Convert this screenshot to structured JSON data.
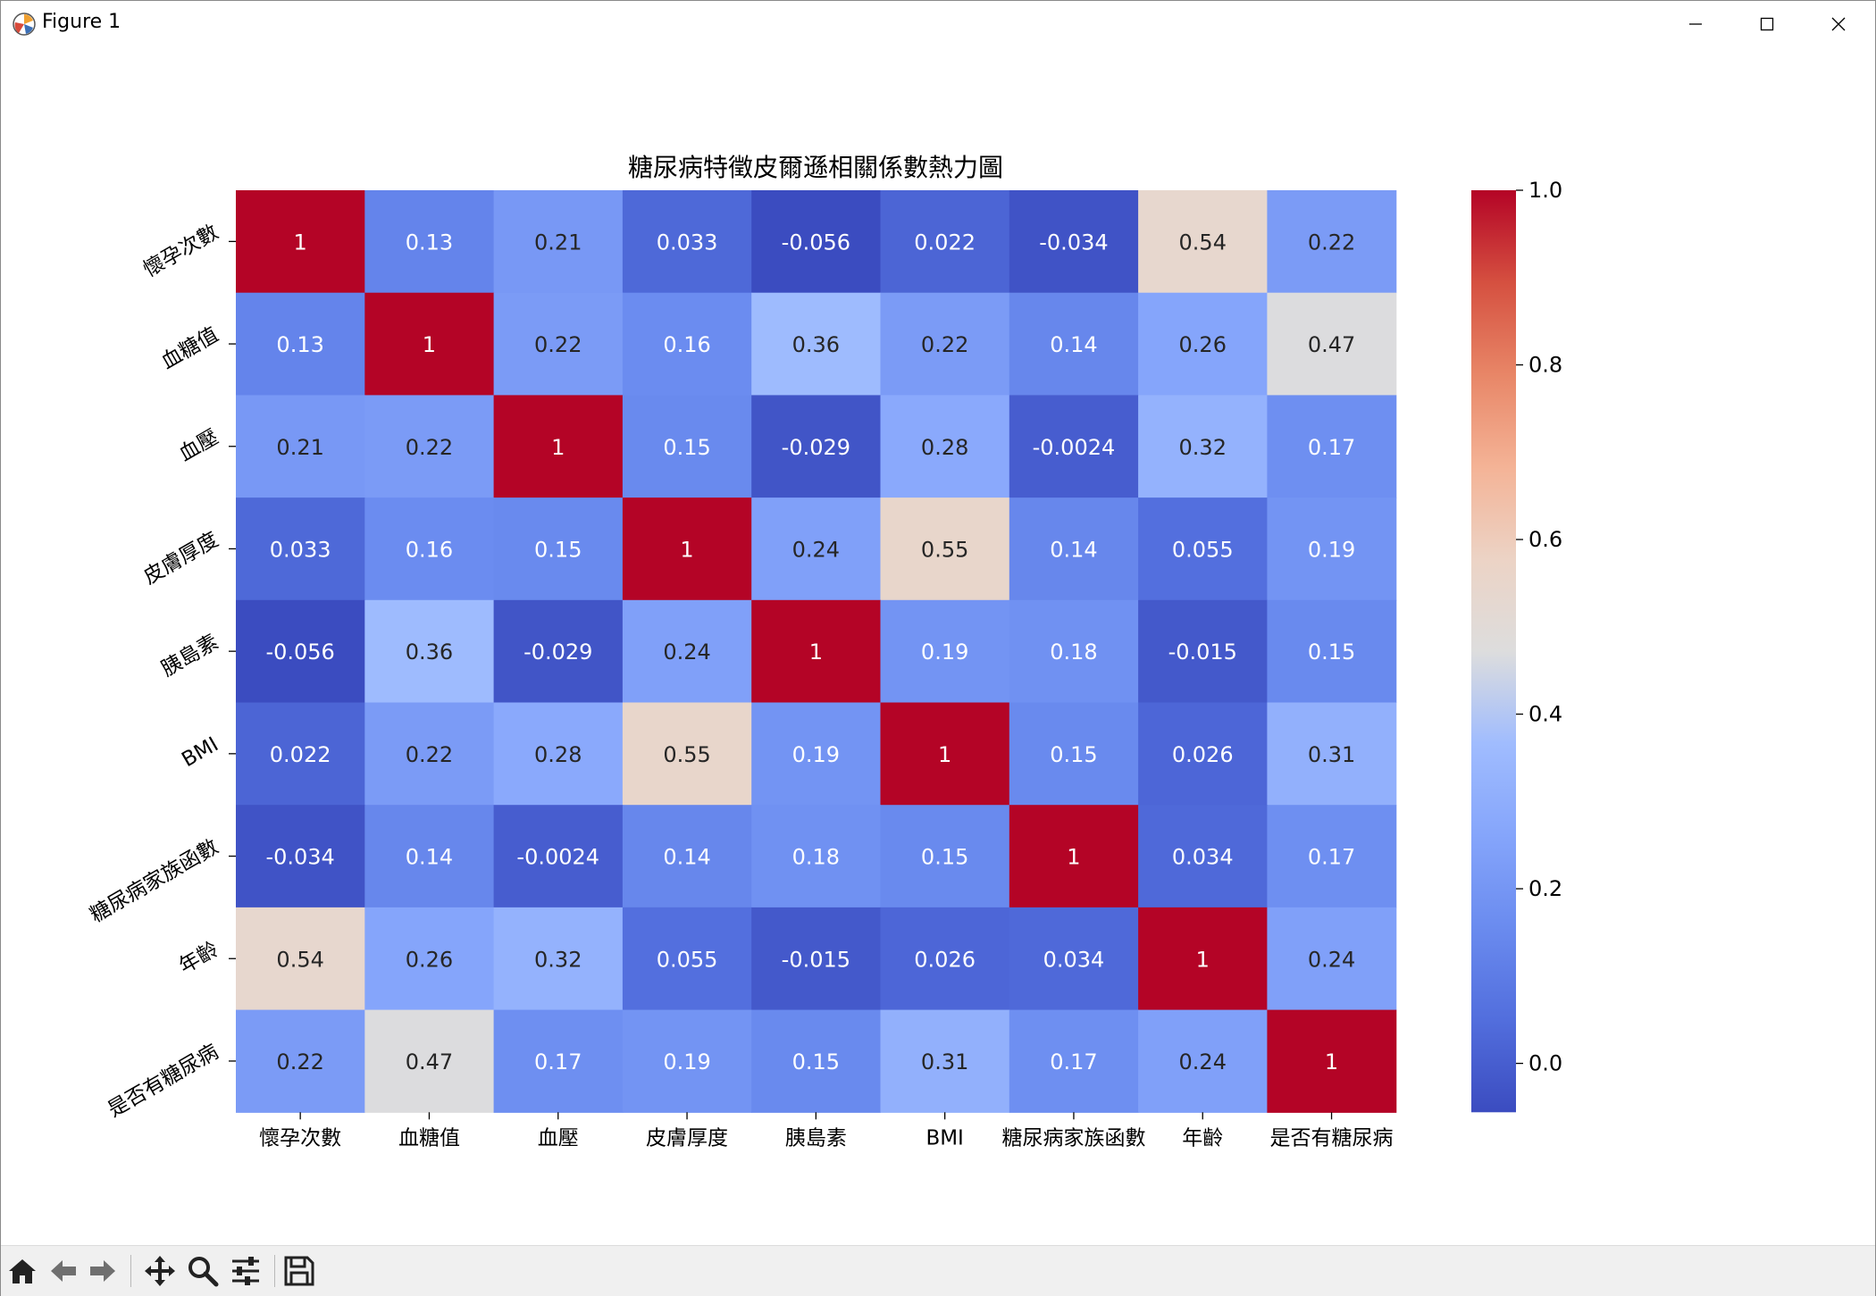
{
  "window": {
    "title": "Figure 1"
  },
  "toolbar": {
    "tools": [
      {
        "icon": "home-icon"
      },
      {
        "icon": "back-arrow-icon"
      },
      {
        "icon": "forward-arrow-icon"
      },
      {
        "icon": "pan-icon"
      },
      {
        "icon": "zoom-icon"
      },
      {
        "icon": "configure-subplots-icon"
      },
      {
        "icon": "save-icon"
      }
    ]
  },
  "chart_data": {
    "type": "heatmap",
    "title": "糖尿病特徵皮爾遜相關係數熱力圖",
    "labels": [
      "懷孕次數",
      "血糖值",
      "血壓",
      "皮膚厚度",
      "胰島素",
      "BMI",
      "糖尿病家族函數",
      "年齡",
      "是否有糖尿病"
    ],
    "matrix": [
      [
        1,
        0.13,
        0.21,
        0.033,
        -0.056,
        0.022,
        -0.034,
        0.54,
        0.22
      ],
      [
        0.13,
        1,
        0.22,
        0.16,
        0.36,
        0.22,
        0.14,
        0.26,
        0.47
      ],
      [
        0.21,
        0.22,
        1,
        0.15,
        -0.029,
        0.28,
        -0.0024,
        0.32,
        0.17
      ],
      [
        0.033,
        0.16,
        0.15,
        1,
        0.24,
        0.55,
        0.14,
        0.055,
        0.19
      ],
      [
        -0.056,
        0.36,
        -0.029,
        0.24,
        1,
        0.19,
        0.18,
        -0.015,
        0.15
      ],
      [
        0.022,
        0.22,
        0.28,
        0.55,
        0.19,
        1,
        0.15,
        0.026,
        0.31
      ],
      [
        -0.034,
        0.14,
        -0.0024,
        0.14,
        0.18,
        0.15,
        1,
        0.034,
        0.17
      ],
      [
        0.54,
        0.26,
        0.32,
        0.055,
        -0.015,
        0.026,
        0.034,
        1,
        0.24
      ],
      [
        0.22,
        0.47,
        0.17,
        0.19,
        0.15,
        0.31,
        0.17,
        0.24,
        1
      ]
    ],
    "colormap": "coolwarm",
    "vmin": -0.056,
    "vmax": 1.0,
    "colorbar_ticks": [
      "0.0",
      "0.2",
      "0.4",
      "0.6",
      "0.8",
      "1.0"
    ],
    "colorbar_tick_values": [
      0.0,
      0.2,
      0.4,
      0.6,
      0.8,
      1.0
    ],
    "annotations": true,
    "ytick_rotation_deg": 30
  }
}
